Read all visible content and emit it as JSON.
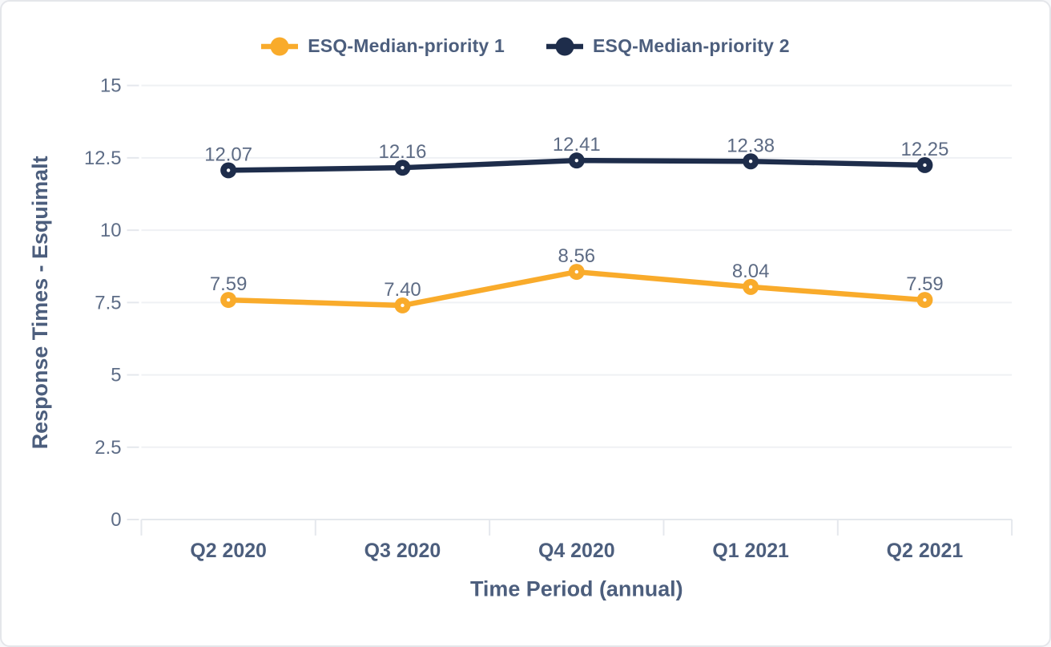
{
  "chart_data": {
    "type": "line",
    "categories": [
      "Q2 2020",
      "Q3 2020",
      "Q4 2020",
      "Q1 2021",
      "Q2 2021"
    ],
    "series": [
      {
        "name": "ESQ-Median-priority 1",
        "color": "#f9ab2b",
        "values": [
          7.59,
          7.4,
          8.56,
          8.04,
          7.59
        ]
      },
      {
        "name": "ESQ-Median-priority 2",
        "color": "#1e2d4b",
        "values": [
          12.07,
          12.16,
          12.41,
          12.38,
          12.25
        ]
      }
    ],
    "title": "",
    "xlabel": "Time Period (annual)",
    "ylabel": "Response Times - Esquimalt",
    "y_ticks": [
      0,
      2.5,
      5,
      7.5,
      10,
      12.5,
      15
    ],
    "ylim": [
      0,
      15
    ],
    "grid": true,
    "legend_position": "top",
    "data_labels": true,
    "data_label_decimals": 2,
    "style": {
      "grid_color": "#eff1f4",
      "axis_line_color": "#e5e8ed",
      "tick_label_color": "#5e6d87",
      "title_color": "#4c5e7d",
      "marker_center_color": "#ffffff",
      "card_border_color": "#e4e6ea",
      "background_color": "#ffffff"
    }
  }
}
